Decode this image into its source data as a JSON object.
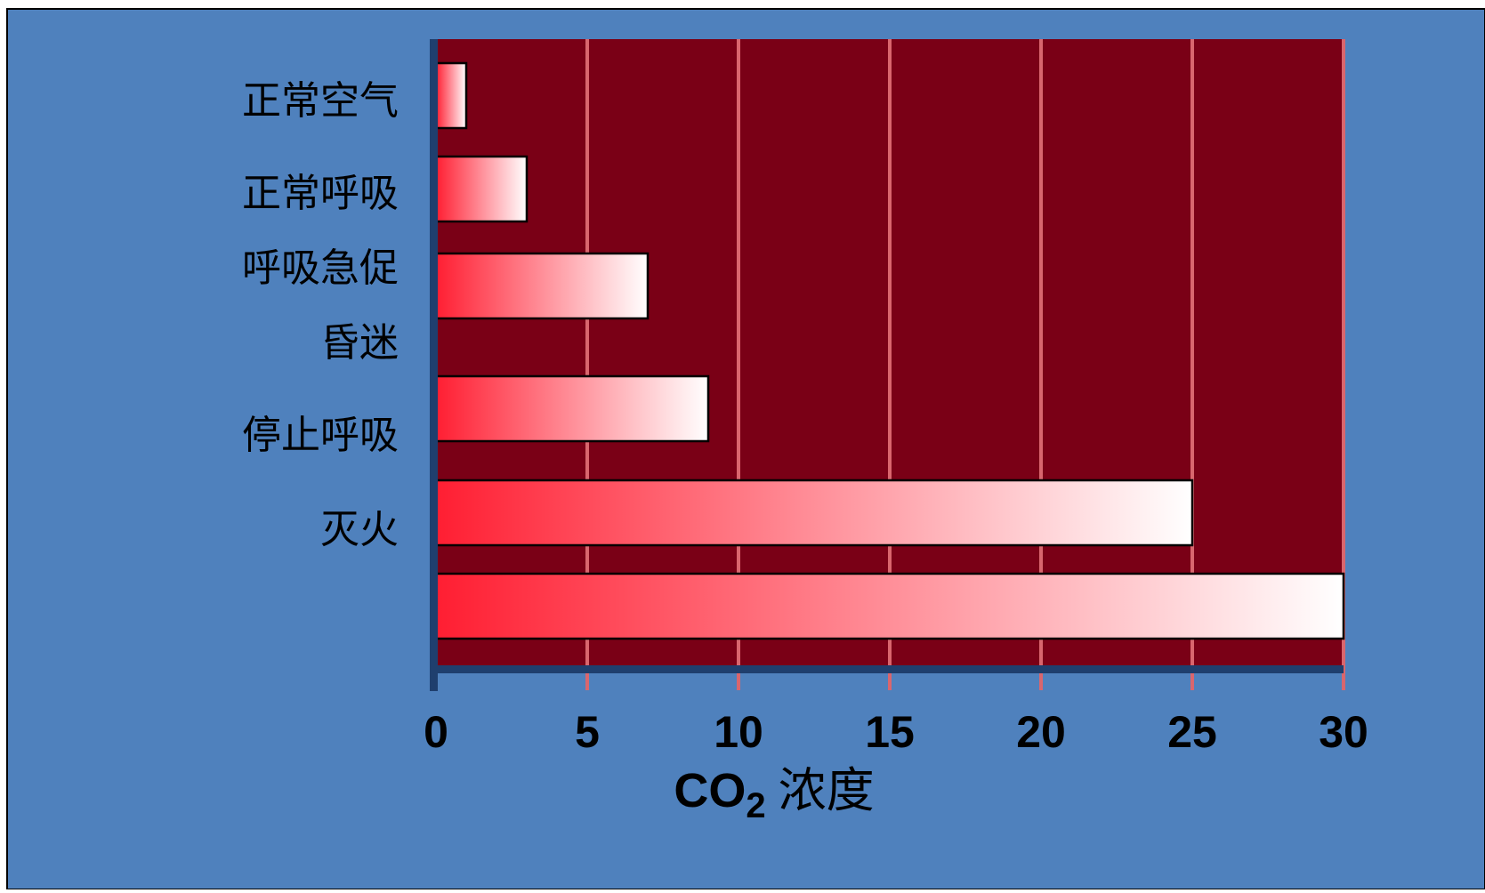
{
  "colors": {
    "background": "#4f81bd",
    "plot_area": "#7a0016",
    "gridline": "#d9666e",
    "axis": "#1f3f6e",
    "bar_start": "#ff1e32",
    "bar_end": "#ffffff",
    "bar_stroke": "#000000"
  },
  "chart_data": {
    "type": "bar",
    "orientation": "horizontal",
    "category_labels": [
      "正常空气",
      "正常呼吸",
      "呼吸急促",
      "昏迷",
      "停止呼吸",
      "灭火"
    ],
    "bar_values": [
      1,
      3,
      7,
      9,
      25,
      30
    ],
    "x_ticks": [
      "0",
      "5",
      "10",
      "15",
      "20",
      "25",
      "30"
    ],
    "xlim": [
      0,
      30
    ],
    "xlabel": {
      "main": "CO",
      "subscript": "2",
      "suffix": "浓度"
    },
    "grid": true
  }
}
